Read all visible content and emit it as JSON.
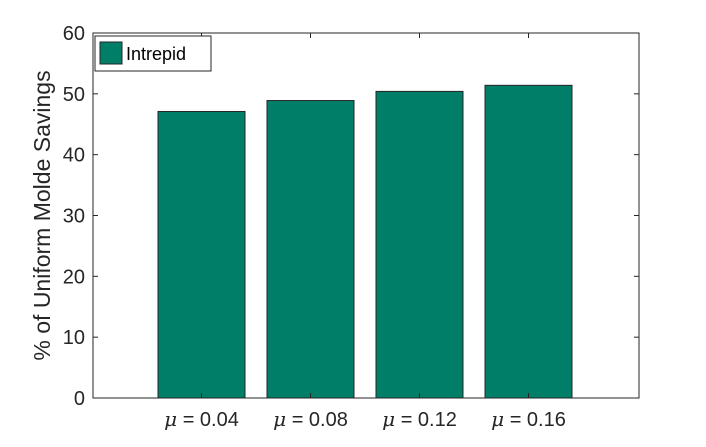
{
  "chart_data": {
    "type": "bar",
    "categories": [
      "μ = 0.04",
      "μ = 0.08",
      "μ = 0.12",
      "μ = 0.16"
    ],
    "series": [
      {
        "name": "Intrepid",
        "values": [
          47.1,
          48.9,
          50.4,
          51.4
        ],
        "color": "#007e68"
      }
    ],
    "xlabel": "",
    "ylabel": "% of Uniform Molde Savings",
    "ylim": [
      0,
      60
    ],
    "yticks": [
      0,
      10,
      20,
      30,
      40,
      50,
      60
    ],
    "grid": false,
    "legend_position": "top-left"
  }
}
